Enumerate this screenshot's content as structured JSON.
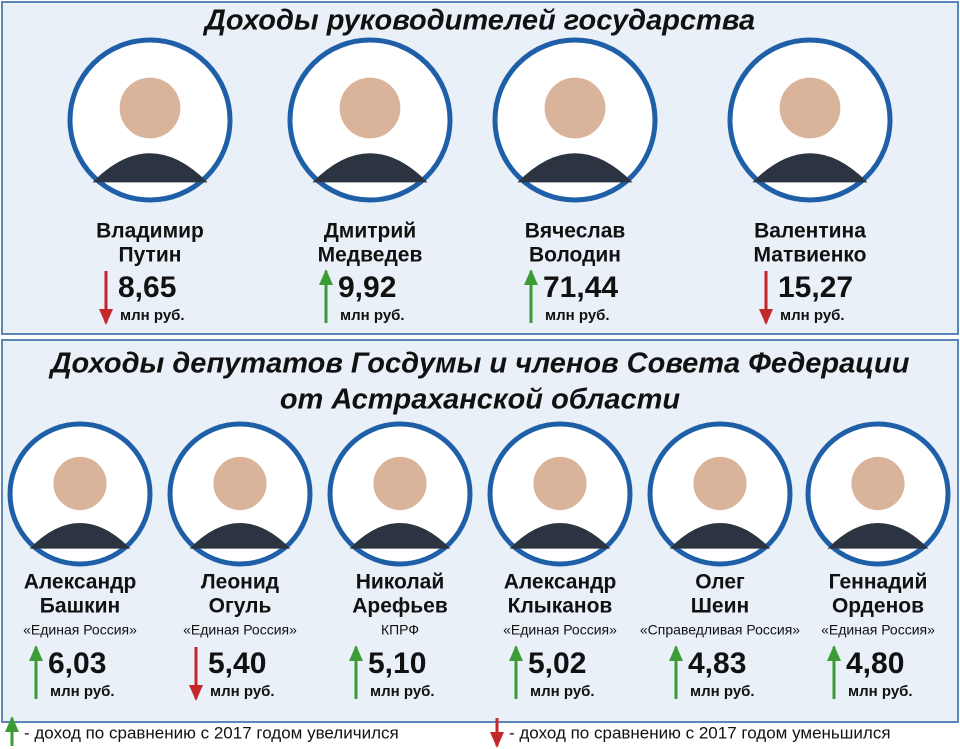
{
  "header": {
    "title": "Доходы руководителей государства"
  },
  "leaders": [
    {
      "first": "Владимир",
      "last": "Путин",
      "income": "8,65",
      "unit": "млн руб.",
      "change": "down"
    },
    {
      "first": "Дмитрий",
      "last": "Медведев",
      "income": "9,92",
      "unit": "млн руб.",
      "change": "up"
    },
    {
      "first": "Вячеслав",
      "last": "Володин",
      "income": "71,44",
      "unit": "млн руб.",
      "change": "up"
    },
    {
      "first": "Валентина",
      "last": "Матвиенко",
      "income": "15,27",
      "unit": "млн руб.",
      "change": "down"
    }
  ],
  "section": {
    "title_lines": [
      "Доходы депутатов Госдумы и членов Совета Федерации",
      "от Астраханской области"
    ]
  },
  "deputies": [
    {
      "first": "Александр",
      "last": "Башкин",
      "party": "«Единая Россия»",
      "income": "6,03",
      "unit": "млн руб.",
      "change": "up"
    },
    {
      "first": "Леонид",
      "last": "Огуль",
      "party": "«Единая Россия»",
      "income": "5,40",
      "unit": "млн руб.",
      "change": "down"
    },
    {
      "first": "Николай",
      "last": "Арефьев",
      "party": "КПРФ",
      "income": "5,10",
      "unit": "млн руб.",
      "change": "up"
    },
    {
      "first": "Александр",
      "last": "Клыканов",
      "party": "«Единая Россия»",
      "income": "5,02",
      "unit": "млн руб.",
      "change": "up"
    },
    {
      "first": "Олег",
      "last": "Шеин",
      "party": "«Справедливая Россия»",
      "income": "4,83",
      "unit": "млн руб.",
      "change": "up"
    },
    {
      "first": "Геннадий",
      "last": "Орденов",
      "party": "«Единая Россия»",
      "income": "4,80",
      "unit": "млн руб.",
      "change": "up"
    }
  ],
  "legend": {
    "up": "- доход по сравнению с 2017 годом увеличился",
    "down": "- доход по сравнению с 2017 годом уменьшился"
  }
}
